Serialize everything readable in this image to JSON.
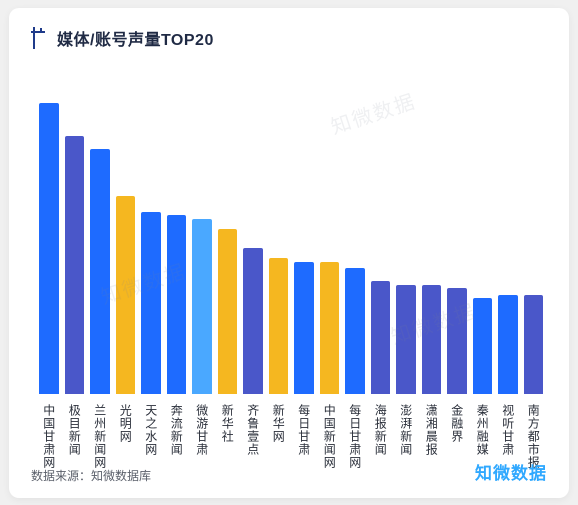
{
  "title": "媒体/账号声量TOP20",
  "chart": {
    "type": "bar",
    "max_value": 100,
    "bar_colors_palette": {
      "blue": "#1e6bff",
      "indigo": "#4a57c9",
      "sky": "#4aa8ff",
      "gold": "#f5b720"
    },
    "bars": [
      {
        "label": "中国甘肃网",
        "value": 88,
        "color": "#1e6bff"
      },
      {
        "label": "极目新闻",
        "value": 78,
        "color": "#4a57c9"
      },
      {
        "label": "兰州新闻网",
        "value": 74,
        "color": "#1e6bff"
      },
      {
        "label": "光明网",
        "value": 60,
        "color": "#f5b720"
      },
      {
        "label": "天之水网",
        "value": 55,
        "color": "#1e6bff"
      },
      {
        "label": "奔流新闻",
        "value": 54,
        "color": "#1e6bff"
      },
      {
        "label": "微游甘肃",
        "value": 53,
        "color": "#4aa8ff"
      },
      {
        "label": "新华社",
        "value": 50,
        "color": "#f5b720"
      },
      {
        "label": "齐鲁壹点",
        "value": 44,
        "color": "#4a57c9"
      },
      {
        "label": "新华网",
        "value": 41,
        "color": "#f5b720"
      },
      {
        "label": "每日甘肃",
        "value": 40,
        "color": "#1e6bff"
      },
      {
        "label": "中国新闻网",
        "value": 40,
        "color": "#f5b720"
      },
      {
        "label": "每日甘肃网",
        "value": 38,
        "color": "#1e6bff"
      },
      {
        "label": "海报新闻",
        "value": 34,
        "color": "#4a57c9"
      },
      {
        "label": "澎湃新闻",
        "value": 33,
        "color": "#4a57c9"
      },
      {
        "label": "潇湘晨报",
        "value": 33,
        "color": "#4a57c9"
      },
      {
        "label": "金融界",
        "value": 32,
        "color": "#4a57c9"
      },
      {
        "label": "秦州融媒",
        "value": 29,
        "color": "#1e6bff"
      },
      {
        "label": "视听甘肃",
        "value": 30,
        "color": "#1e6bff"
      },
      {
        "label": "南方都市报",
        "value": 30,
        "color": "#4a57c9"
      }
    ],
    "background_color": "#ffffff",
    "label_font_size": 12,
    "label_color": "#2a2f3a"
  },
  "footer": {
    "source_label": "数据来源：",
    "source_value": "知微数据库",
    "brand": "知微数据",
    "brand_color": "#2fa8ff"
  },
  "title_marker_color": "#1f3b8a",
  "watermark_text": "知微数据"
}
